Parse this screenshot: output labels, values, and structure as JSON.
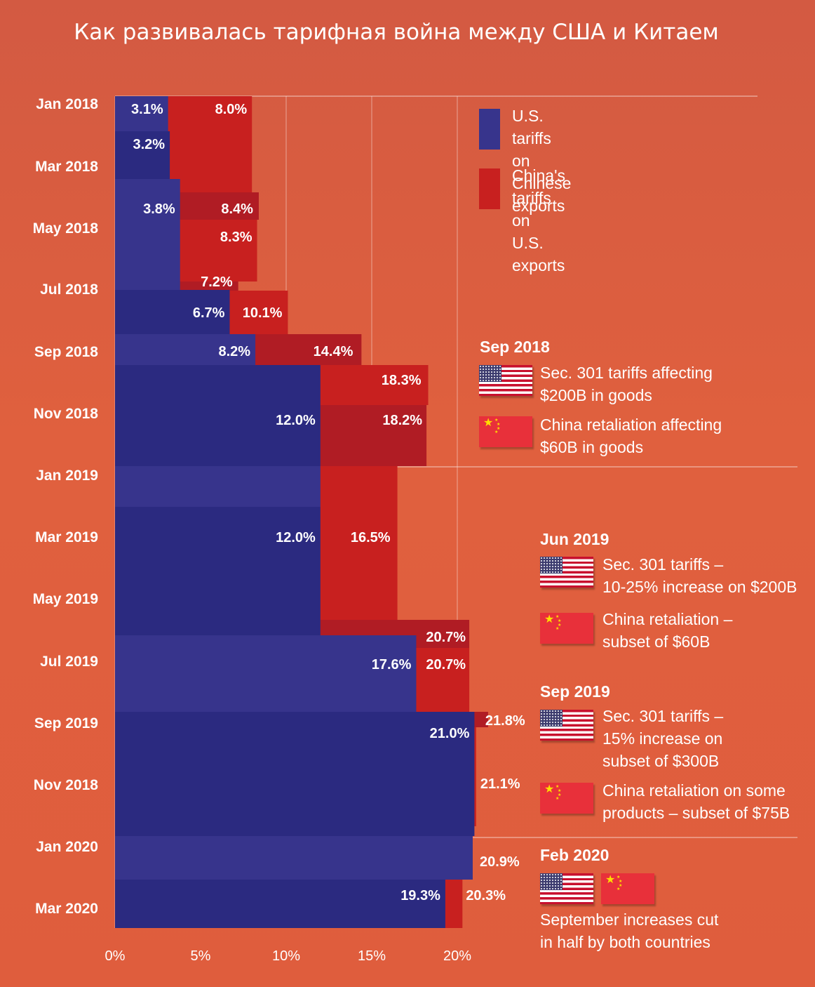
{
  "page": {
    "title": "Как развивалась тарифная война между США и Китаем"
  },
  "colors": {
    "us": "#37348c",
    "us_dark": "#2b2a80",
    "cn": "#c8201f",
    "cn_dark": "#b01c24",
    "gridline": "rgba(255,255,255,0.45)"
  },
  "legend": {
    "us_label": "U.S. tariffs on\nChinese exports",
    "cn_label": "China's tariffs\non U.S. exports"
  },
  "annotations": [
    {
      "date": "Sep 2018",
      "items": [
        {
          "flag": "us",
          "text": "Sec. 301 tariffs affecting\n$200B in goods"
        },
        {
          "flag": "cn",
          "text": "China retaliation affecting\n$60B in goods"
        }
      ]
    },
    {
      "date": "Jun 2019",
      "items": [
        {
          "flag": "us",
          "text": "Sec. 301 tariffs –\n10-25% increase on $200B"
        },
        {
          "flag": "cn",
          "text": "China retaliation –\nsubset of $60B"
        }
      ]
    },
    {
      "date": "Sep 2019",
      "items": [
        {
          "flag": "us",
          "text": "Sec. 301 tariffs –\n15% increase on\nsubset of $300B"
        },
        {
          "flag": "cn",
          "text": "China retaliation on some\nproducts – subset of $75B"
        }
      ]
    },
    {
      "date": "Feb 2020",
      "items": [
        {
          "flag": "us+cn",
          "text": "September increases cut\nin half by both countries"
        }
      ]
    }
  ],
  "chart_data": {
    "type": "bar",
    "orientation": "horizontal-step",
    "y_labels": [
      "Jan 2018",
      "Mar 2018",
      "May 2018",
      "Jul 2018",
      "Sep 2018",
      "Nov 2018",
      "Jan 2019",
      "Mar 2019",
      "May 2019",
      "Jul 2019",
      "Sep 2019",
      "Nov 2018",
      "Jan 2020",
      "Mar 2020"
    ],
    "x_ticks": [
      "0%",
      "5%",
      "10%",
      "15%",
      "20%"
    ],
    "xlim": [
      0,
      20
    ],
    "series": [
      {
        "name": "U.S. tariffs on Chinese exports",
        "segments": [
          {
            "value": 3.1,
            "label": "3.1%",
            "start": "Jan 2018"
          },
          {
            "value": 3.2,
            "label": "3.2%",
            "start": "Feb 2018"
          },
          {
            "value": 3.8,
            "label": "3.8%",
            "start": "Apr 2018"
          },
          {
            "value": 6.7,
            "label": "6.7%",
            "start": "Jul 2018"
          },
          {
            "value": 8.2,
            "label": "8.2%",
            "start": "Aug 2018"
          },
          {
            "value": 12.0,
            "label": "12.0%",
            "start": "Sep 2018"
          },
          {
            "value": 12.0,
            "label": "",
            "start": "Jan 2019"
          },
          {
            "value": 12.0,
            "label": "12.0%",
            "start": "Feb 2019"
          },
          {
            "value": 17.6,
            "label": "17.6%",
            "start": "Jun 2019"
          },
          {
            "value": 21.0,
            "label": "21.0%",
            "start": "Sep 2019"
          },
          {
            "value": 20.9,
            "label": "",
            "start": "Jan 2020"
          },
          {
            "value": 19.3,
            "label": "19.3%",
            "start": "Feb 2020"
          }
        ]
      },
      {
        "name": "China's tariffs on U.S. exports",
        "segments": [
          {
            "value": 8.0,
            "label": "8.0%",
            "start": "Jan 2018"
          },
          {
            "value": 8.4,
            "label": "8.4%",
            "start": "Apr 2018"
          },
          {
            "value": 8.3,
            "label": "8.3%",
            "start": "May 2018"
          },
          {
            "value": 7.2,
            "label": "7.2%",
            "start": "Jul 2018"
          },
          {
            "value": 10.1,
            "label": "10.1%",
            "start": "Jul 2018"
          },
          {
            "value": 14.4,
            "label": "14.4%",
            "start": "Aug 2018"
          },
          {
            "value": 18.3,
            "label": "18.3%",
            "start": "Sep 2018"
          },
          {
            "value": 18.2,
            "label": "18.2%",
            "start": "Oct 2018"
          },
          {
            "value": 16.5,
            "label": "16.5%",
            "start": "Jan 2019"
          },
          {
            "value": 20.7,
            "label": "20.7%",
            "start": "Jun 2019"
          },
          {
            "value": 20.7,
            "label": "20.7%",
            "start": "Jul 2019"
          },
          {
            "value": 21.8,
            "label": "21.8%",
            "start": "Sep 2019"
          },
          {
            "value": 21.1,
            "label": "21.1%",
            "start": "Oct 2019"
          },
          {
            "value": 20.9,
            "label": "20.9%",
            "start": "Jan 2020"
          },
          {
            "value": 20.3,
            "label": "20.3%",
            "start": "Feb 2020"
          }
        ]
      }
    ]
  }
}
